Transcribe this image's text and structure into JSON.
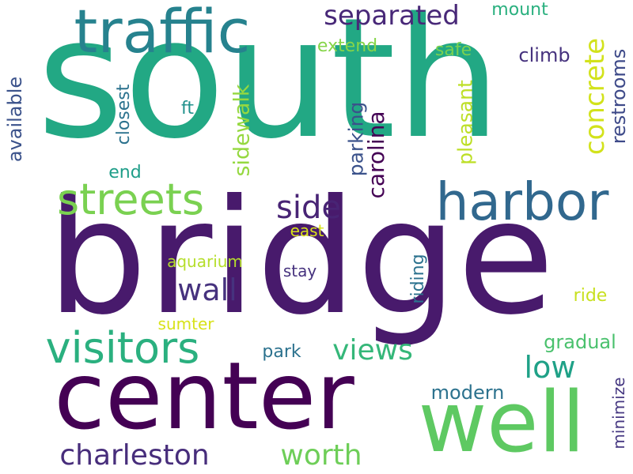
{
  "words": [
    {
      "id": "south",
      "text": "south",
      "color": "#22a884"
    },
    {
      "id": "bridge",
      "text": "bridge",
      "color": "#481a6c"
    },
    {
      "id": "center",
      "text": "center",
      "color": "#440154"
    },
    {
      "id": "well",
      "text": "well",
      "color": "#5ec962"
    },
    {
      "id": "traffic",
      "text": "traffic",
      "color": "#26828e"
    },
    {
      "id": "harbor",
      "text": "harbor",
      "color": "#31688e"
    },
    {
      "id": "visitors",
      "text": "visitors",
      "color": "#2ab07f"
    },
    {
      "id": "streets",
      "text": "streets",
      "color": "#7ad151"
    },
    {
      "id": "separated",
      "text": "separated",
      "color": "#482878"
    },
    {
      "id": "concrete",
      "text": "concrete",
      "color": "#d2e21b"
    },
    {
      "id": "side",
      "text": "side",
      "color": "#482475"
    },
    {
      "id": "wall",
      "text": "wall",
      "color": "#46327e"
    },
    {
      "id": "views",
      "text": "views",
      "color": "#35b779"
    },
    {
      "id": "low",
      "text": "low",
      "color": "#1fa187"
    },
    {
      "id": "charleston",
      "text": "charleston",
      "color": "#472d7b"
    },
    {
      "id": "worth",
      "text": "worth",
      "color": "#6ece58"
    },
    {
      "id": "sidewalk",
      "text": "sidewalk",
      "color": "#95d840"
    },
    {
      "id": "carolina",
      "text": "carolina",
      "color": "#440154"
    },
    {
      "id": "parking",
      "text": "parking",
      "color": "#3b528b"
    },
    {
      "id": "pleasant",
      "text": "pleasant",
      "color": "#bddf26"
    },
    {
      "id": "restrooms",
      "text": "restrooms",
      "color": "#3e4a89"
    },
    {
      "id": "available",
      "text": "available",
      "color": "#3b528b"
    },
    {
      "id": "closest",
      "text": "closest",
      "color": "#2c728e"
    },
    {
      "id": "riding",
      "text": "riding",
      "color": "#2c728e"
    },
    {
      "id": "minimize",
      "text": "minimize",
      "color": "#453781"
    },
    {
      "id": "mount",
      "text": "mount",
      "color": "#2ab07f"
    },
    {
      "id": "extend",
      "text": "extend",
      "color": "#86d549"
    },
    {
      "id": "safe",
      "text": "safe",
      "color": "#7ad151"
    },
    {
      "id": "climb",
      "text": "climb",
      "color": "#46327e"
    },
    {
      "id": "ft",
      "text": "ft",
      "color": "#21918c"
    },
    {
      "id": "end",
      "text": "end",
      "color": "#1f9e89"
    },
    {
      "id": "east",
      "text": "east",
      "color": "#d8e219"
    },
    {
      "id": "aquarium",
      "text": "aquarium",
      "color": "#b5de2b"
    },
    {
      "id": "stay",
      "text": "stay",
      "color": "#46327e"
    },
    {
      "id": "ride",
      "text": "ride",
      "color": "#c8e020"
    },
    {
      "id": "sumter",
      "text": "sumter",
      "color": "#d8e219"
    },
    {
      "id": "park",
      "text": "park",
      "color": "#2c728e"
    },
    {
      "id": "gradual",
      "text": "gradual",
      "color": "#4ac16d"
    },
    {
      "id": "modern",
      "text": "modern",
      "color": "#2c728e"
    }
  ]
}
